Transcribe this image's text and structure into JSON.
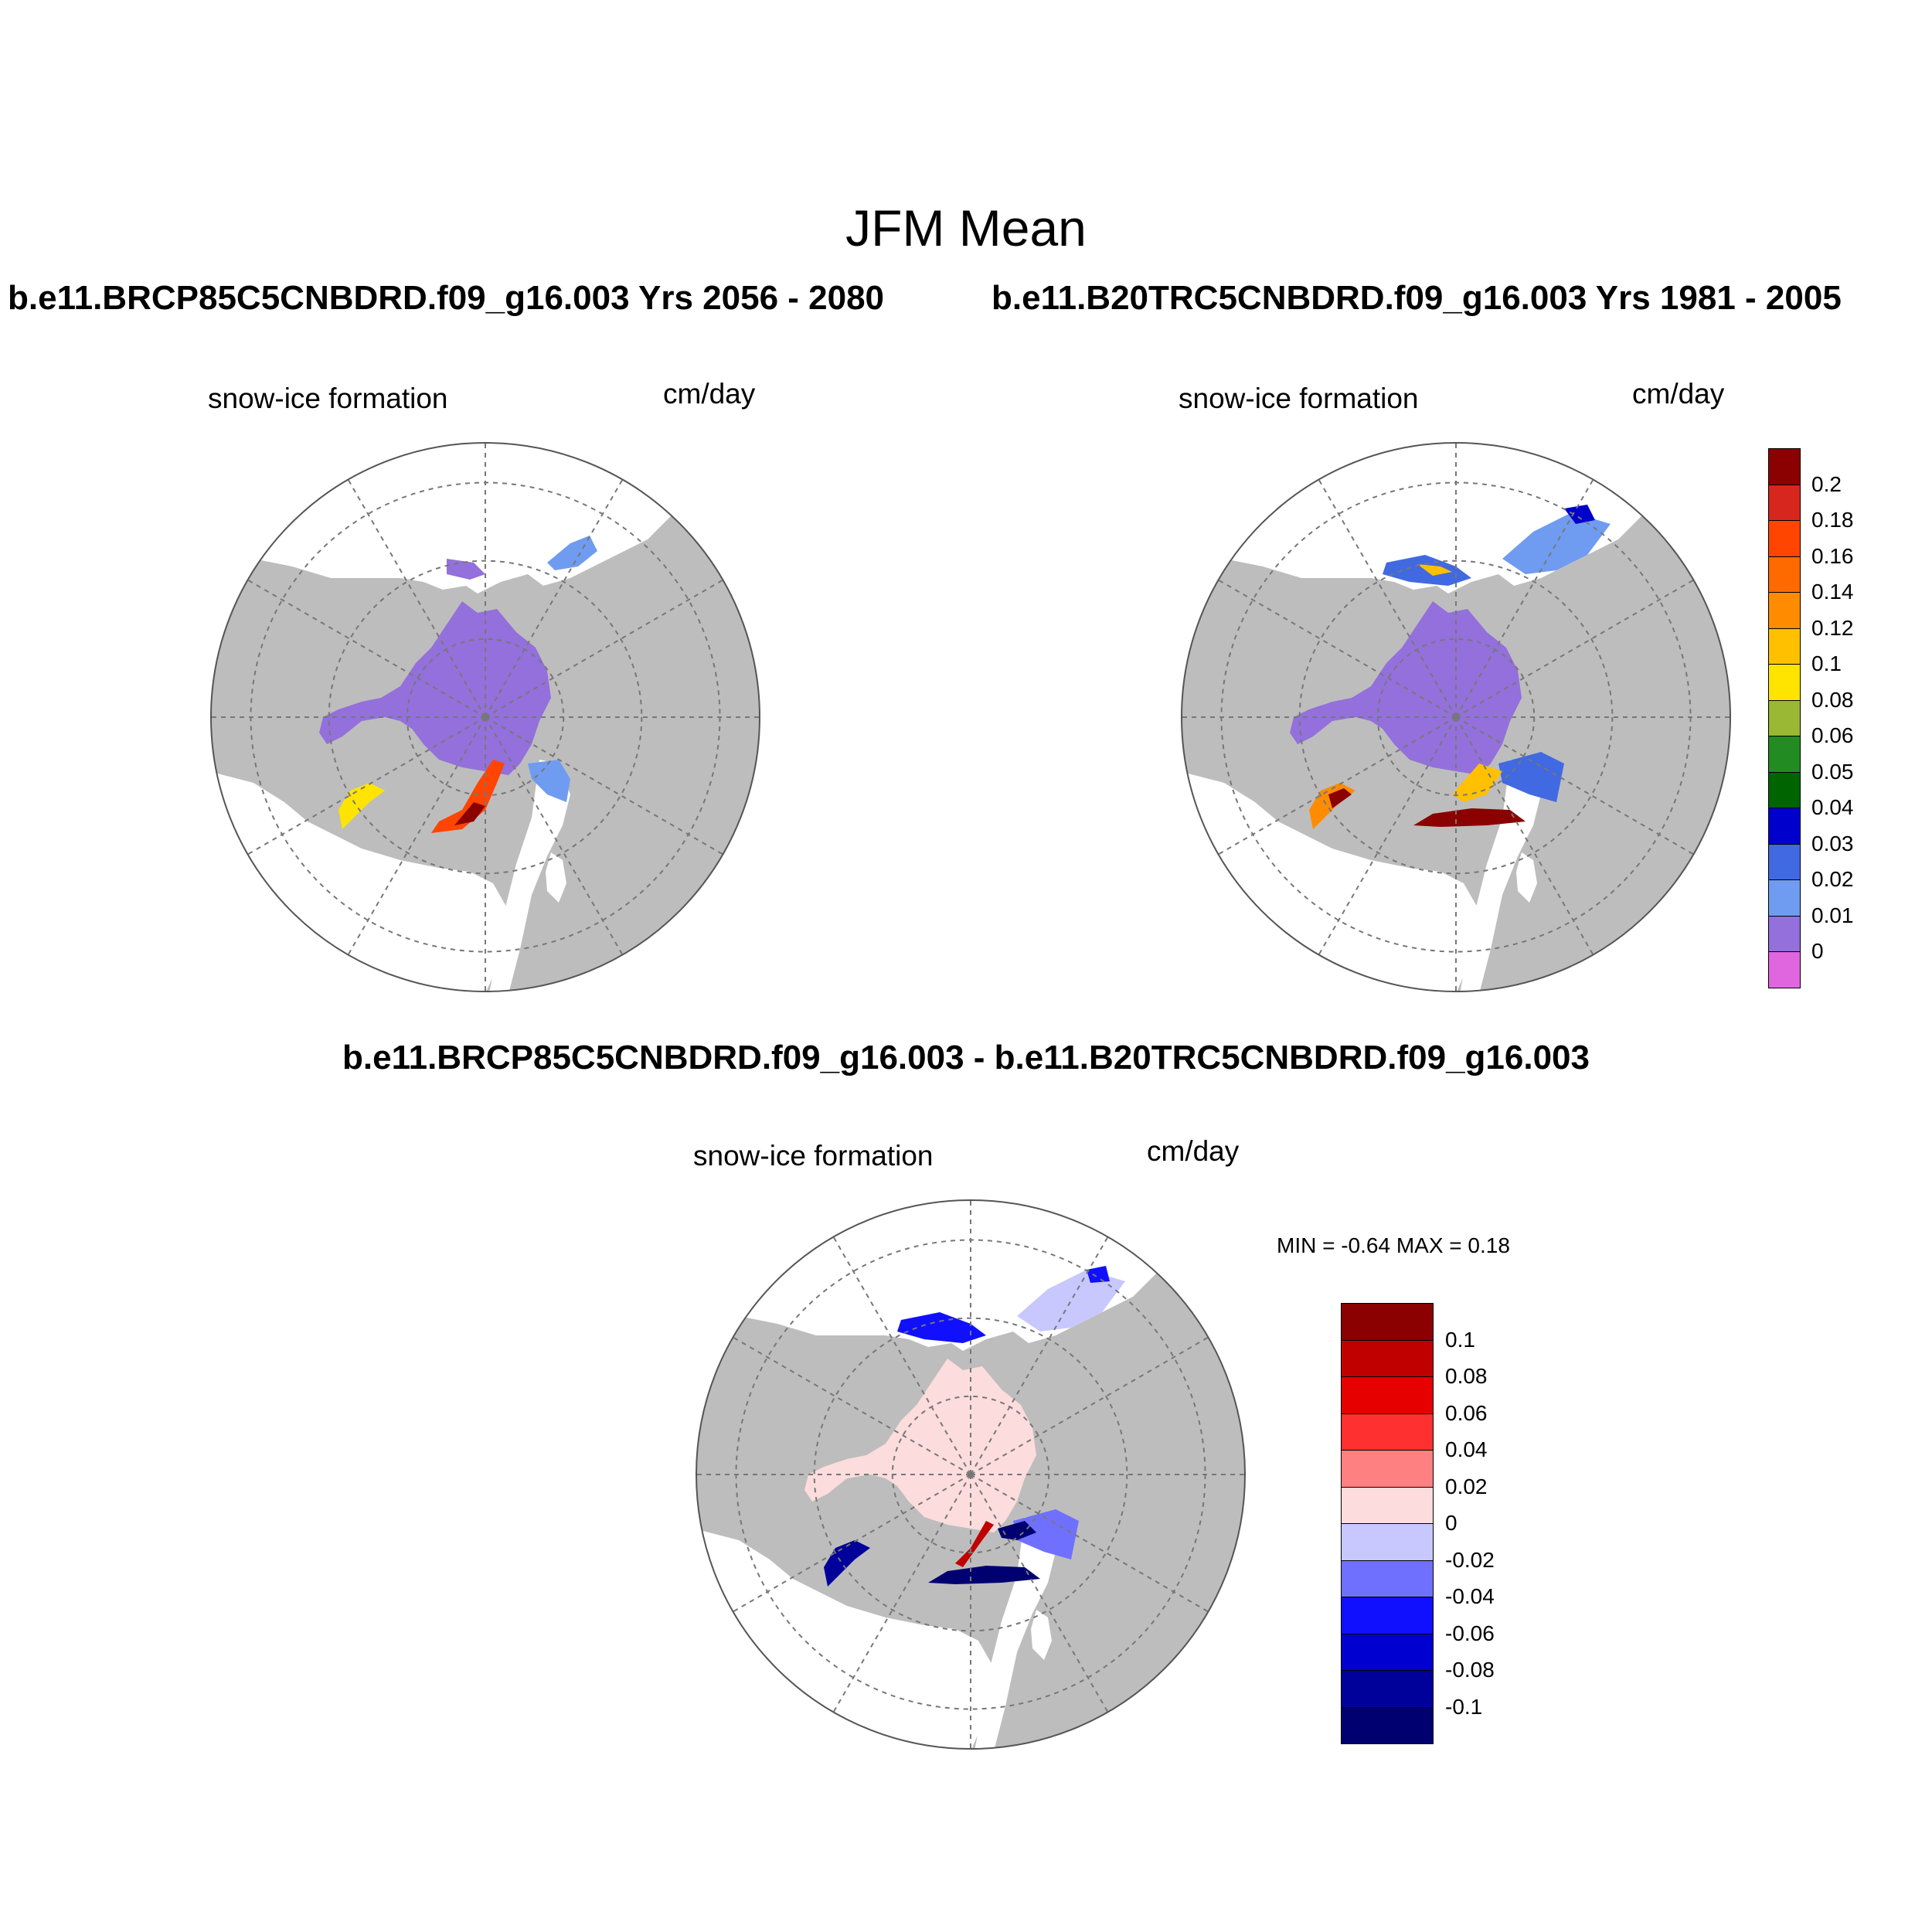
{
  "figure": {
    "main_title": "JFM Mean",
    "left_run_title": "b.e11.BRCP85C5CNBDRD.f09_g16.003  Yrs 2056 - 2080",
    "right_run_title": "b.e11.B20TRC5CNBDRD.f09_g16.003  Yrs 1981 - 2005",
    "diff_title": "b.e11.BRCP85C5CNBDRD.f09_g16.003 - b.e11.B20TRC5CNBDRD.f09_g16.003"
  },
  "panels": [
    {
      "id": "future",
      "variable": "snow-ice formation",
      "units": "cm/day"
    },
    {
      "id": "historical",
      "variable": "snow-ice formation",
      "units": "cm/day"
    },
    {
      "id": "difference",
      "variable": "snow-ice formation",
      "units": "cm/day",
      "min_label": "MIN =  -0.64 MAX =   0.18"
    }
  ],
  "colorbar_abs": {
    "labels": [
      "0.2",
      "0.18",
      "0.16",
      "0.14",
      "0.12",
      "0.1",
      "0.08",
      "0.06",
      "0.05",
      "0.04",
      "0.03",
      "0.02",
      "0.01",
      "0"
    ],
    "colors": [
      "#8b0000",
      "#d7261e",
      "#ff4500",
      "#ff6a00",
      "#ff8c00",
      "#ffc000",
      "#ffe400",
      "#9ab833",
      "#228b22",
      "#006400",
      "#0000cd",
      "#4169e1",
      "#6f9cf0",
      "#9370db",
      "#e066e0"
    ]
  },
  "colorbar_diff": {
    "labels": [
      "0.1",
      "0.08",
      "0.06",
      "0.04",
      "0.02",
      "0",
      "-0.02",
      "-0.04",
      "-0.06",
      "-0.08",
      "-0.1"
    ],
    "colors": [
      "#8b0000",
      "#c00000",
      "#e60000",
      "#ff3030",
      "#ff8080",
      "#fcdcdc",
      "#c8c8ff",
      "#7070ff",
      "#1010ff",
      "#0000d0",
      "#00009a",
      "#000070"
    ]
  },
  "map_colors": {
    "land": "#bdbdbd",
    "ocean": "#ffffff",
    "ice_base_abs": "#9370db",
    "ice_base_diff": "#fcdcdc"
  }
}
